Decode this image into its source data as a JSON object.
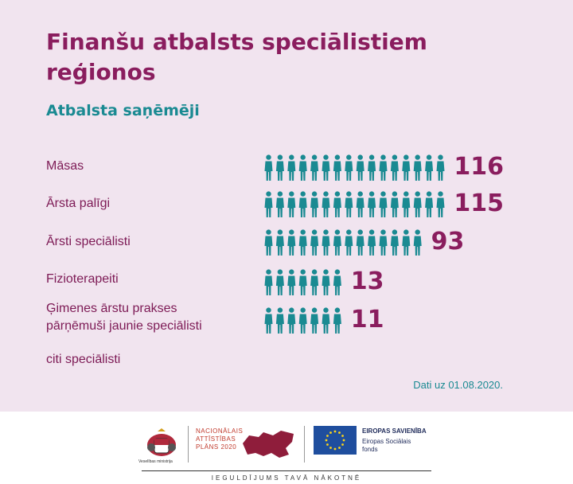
{
  "header": {
    "title": "Finanšu atbalsts speciālistiem reģionos",
    "subtitle": "Atbalsta saņēmēji"
  },
  "colors": {
    "title": "#8a1d5e",
    "accent": "#1a8a92",
    "background": "#f1e4ef",
    "icon": "#1a8a92"
  },
  "chart_data": {
    "type": "bar",
    "style": "pictogram",
    "icon": "person-icon",
    "categories": [
      "Māsas",
      "Ārsta palīgi",
      "Ārsti speciālisti",
      "Fizioterapeiti",
      "Ģimenes ārstu prakses pārņēmuši jaunie speciālisti",
      "citi speciālisti"
    ],
    "values": [
      116,
      115,
      93,
      13,
      11,
      null
    ],
    "icons_shown": [
      16,
      16,
      14,
      7,
      7,
      0
    ],
    "value_labels": [
      "116",
      "115",
      "93",
      "13",
      "11",
      ""
    ]
  },
  "note": "Dati uz 01.08.2020.",
  "footer": {
    "ministry": "Veselības ministrija",
    "nap_line1": "NACIONĀLAIS",
    "nap_line2": "ATTĪSTĪBAS",
    "nap_line3": "PLĀNS 2020",
    "eu_title": "EIROPAS SAVIENĪBA",
    "eu_line1": "Eiropas Sociālais",
    "eu_line2": "fonds",
    "slogan": "IEGULDĪJUMS TAVĀ NĀKOTNĒ"
  }
}
